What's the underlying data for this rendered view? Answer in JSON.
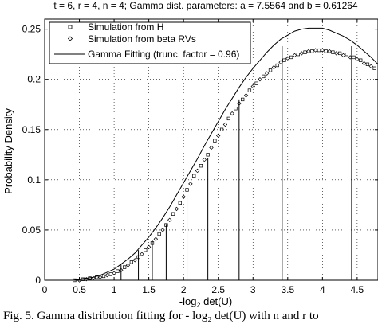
{
  "chart_data": {
    "type": "line",
    "title": "t = 6, r = 4, n = 4; Gamma dist. parameters: a = 7.5564 and b = 0.61264",
    "xlabel_prefix": "-log",
    "xlabel_sub": "2",
    "xlabel_suffix": " det(U)",
    "ylabel": "Probability Density",
    "xlim": [
      0,
      4.8
    ],
    "ylim": [
      0,
      0.26
    ],
    "grid": true,
    "grid_style": "dotted",
    "legend_position": "top-left",
    "x_ticks": [
      0,
      0.5,
      1,
      1.5,
      2,
      2.5,
      3,
      3.5,
      4,
      4.5
    ],
    "x_tick_labels": [
      "0",
      "0.5",
      "1",
      "1.5",
      "2",
      "2.5",
      "3",
      "3.5",
      "4",
      "4.5"
    ],
    "y_ticks": [
      0,
      0.05,
      0.1,
      0.15,
      0.2,
      0.25
    ],
    "y_tick_labels": [
      "0",
      "0.05",
      "0.1",
      "0.15",
      "0.2",
      "0.25"
    ],
    "series": [
      {
        "name": "Simulation from H",
        "marker": "square",
        "x": [
          0.43,
          0.55,
          0.65,
          0.75,
          0.85,
          0.95,
          1.05,
          1.15,
          1.25,
          1.35,
          1.45,
          1.55,
          1.65,
          1.75,
          1.85,
          1.95,
          2.05,
          2.15,
          2.25,
          2.35,
          2.45,
          2.55,
          2.65,
          2.75,
          2.85,
          2.95,
          3.05,
          3.15,
          3.25,
          3.35,
          3.45,
          3.55,
          3.65,
          3.75,
          3.85,
          3.95,
          4.05,
          4.15,
          4.25,
          4.35,
          4.45,
          4.55,
          4.65,
          4.75
        ],
        "y": [
          0.0,
          0.001,
          0.002,
          0.003,
          0.004,
          0.006,
          0.009,
          0.013,
          0.018,
          0.023,
          0.03,
          0.037,
          0.046,
          0.055,
          0.066,
          0.077,
          0.09,
          0.104,
          0.114,
          0.125,
          0.139,
          0.15,
          0.161,
          0.171,
          0.18,
          0.189,
          0.196,
          0.203,
          0.209,
          0.214,
          0.219,
          0.222,
          0.225,
          0.227,
          0.228,
          0.229,
          0.228,
          0.227,
          0.226,
          0.225,
          0.222,
          0.219,
          0.215,
          0.211
        ]
      },
      {
        "name": "Simulation from beta RVs",
        "marker": "diamond",
        "x": [
          0.5,
          0.6,
          0.7,
          0.8,
          0.9,
          1.0,
          1.1,
          1.2,
          1.3,
          1.4,
          1.5,
          1.6,
          1.7,
          1.8,
          1.9,
          2.0,
          2.1,
          2.2,
          2.3,
          2.4,
          2.5,
          2.6,
          2.7,
          2.8,
          2.9,
          3.0,
          3.1,
          3.2,
          3.3,
          3.4,
          3.5,
          3.6,
          3.7,
          3.8,
          3.9,
          4.0,
          4.1,
          4.2,
          4.3,
          4.4,
          4.5,
          4.6,
          4.7
        ],
        "y": [
          0.0,
          0.001,
          0.002,
          0.003,
          0.005,
          0.007,
          0.01,
          0.015,
          0.02,
          0.026,
          0.033,
          0.041,
          0.05,
          0.06,
          0.071,
          0.083,
          0.096,
          0.109,
          0.12,
          0.132,
          0.144,
          0.155,
          0.166,
          0.176,
          0.184,
          0.193,
          0.2,
          0.206,
          0.212,
          0.217,
          0.221,
          0.224,
          0.226,
          0.228,
          0.229,
          0.229,
          0.228,
          0.226,
          0.224,
          0.222,
          0.22,
          0.216,
          0.213
        ]
      },
      {
        "name": "Gamma Fitting (trunc. factor = 0.96)",
        "marker": "line",
        "x": [
          0.4,
          0.5,
          0.6,
          0.7,
          0.8,
          0.9,
          1.0,
          1.1,
          1.2,
          1.3,
          1.4,
          1.5,
          1.6,
          1.7,
          1.8,
          1.9,
          2.0,
          2.1,
          2.2,
          2.3,
          2.4,
          2.5,
          2.6,
          2.7,
          2.8,
          2.9,
          3.0,
          3.1,
          3.2,
          3.3,
          3.4,
          3.5,
          3.6,
          3.7,
          3.8,
          3.9,
          4.0,
          4.1,
          4.2,
          4.3,
          4.4,
          4.5,
          4.6,
          4.7,
          4.8
        ],
        "y": [
          0.0,
          0.001,
          0.002,
          0.003,
          0.005,
          0.008,
          0.011,
          0.016,
          0.021,
          0.027,
          0.035,
          0.043,
          0.052,
          0.062,
          0.073,
          0.085,
          0.097,
          0.109,
          0.121,
          0.134,
          0.146,
          0.158,
          0.17,
          0.181,
          0.192,
          0.202,
          0.211,
          0.219,
          0.227,
          0.234,
          0.24,
          0.244,
          0.248,
          0.25,
          0.251,
          0.251,
          0.251,
          0.249,
          0.246,
          0.243,
          0.239,
          0.234,
          0.228,
          0.222,
          0.215
        ]
      }
    ],
    "vertical_lines": [
      {
        "x": 1.1,
        "y": 0.016
      },
      {
        "x": 1.35,
        "y": 0.03
      },
      {
        "x": 1.55,
        "y": 0.04
      },
      {
        "x": 1.75,
        "y": 0.056
      },
      {
        "x": 2.05,
        "y": 0.085
      },
      {
        "x": 2.35,
        "y": 0.122
      },
      {
        "x": 2.8,
        "y": 0.18
      },
      {
        "x": 3.42,
        "y": 0.233
      },
      {
        "x": 4.42,
        "y": 0.233
      }
    ],
    "colors": {
      "line": "#000000",
      "grid": "#000000",
      "background": "#ffffff"
    }
  },
  "caption": "Fig. 5.   Gamma distribution fitting for - log₂ det(U) with n and r to"
}
